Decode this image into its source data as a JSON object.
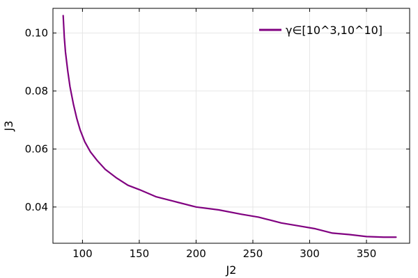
{
  "chart_data": {
    "type": "line",
    "title": "",
    "xlabel": "J2",
    "ylabel": "J3",
    "xlim": [
      74,
      388
    ],
    "ylim": [
      0.0275,
      0.1085
    ],
    "xticks": [
      100,
      150,
      200,
      250,
      300,
      350
    ],
    "yticks": [
      0.04,
      0.06,
      0.08,
      0.1
    ],
    "xtick_labels": [
      "100",
      "150",
      "200",
      "250",
      "300",
      "350"
    ],
    "ytick_labels": [
      "0.04",
      "0.06",
      "0.08",
      "0.10"
    ],
    "grid": true,
    "legend": {
      "position": "top-right"
    },
    "series": [
      {
        "name": "γ∈[10^3,10^10]",
        "color": "#800080",
        "x": [
          83,
          84,
          85,
          87,
          89,
          92,
          95,
          98,
          102,
          107,
          113,
          120,
          130,
          140,
          150,
          165,
          180,
          200,
          220,
          240,
          255,
          265,
          275,
          290,
          305,
          320,
          335,
          350,
          365,
          376
        ],
        "y": [
          0.106,
          0.0985,
          0.0935,
          0.087,
          0.0815,
          0.0755,
          0.0705,
          0.0665,
          0.0625,
          0.059,
          0.056,
          0.053,
          0.05,
          0.0475,
          0.046,
          0.0435,
          0.042,
          0.04,
          0.039,
          0.0375,
          0.0365,
          0.0355,
          0.0345,
          0.0335,
          0.0325,
          0.031,
          0.0305,
          0.0298,
          0.0296,
          0.0296
        ]
      }
    ]
  }
}
